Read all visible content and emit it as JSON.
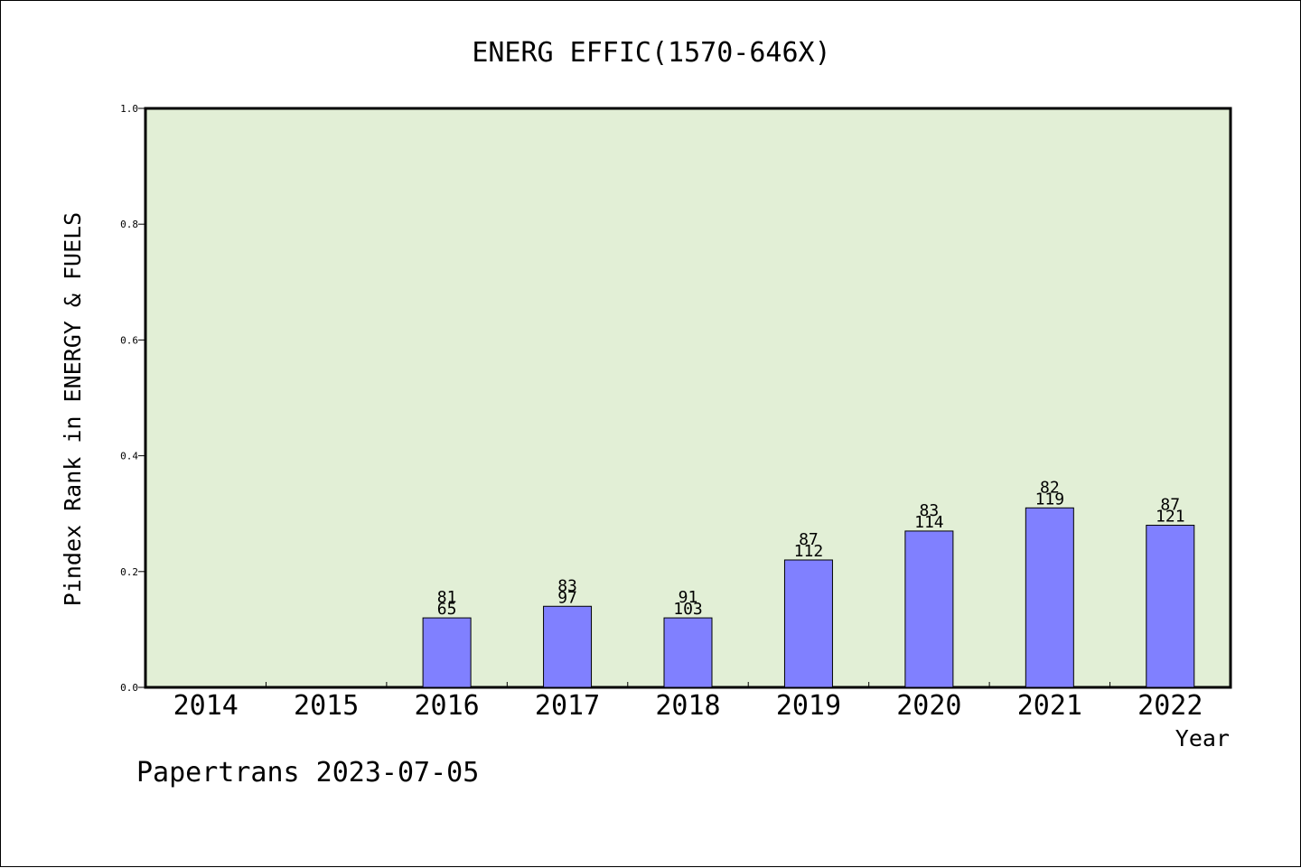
{
  "chart_data": {
    "type": "bar",
    "title": "ENERG EFFIC(1570-646X)",
    "xlabel": "Year",
    "ylabel": "Pindex Rank in ENERGY & FUELS",
    "ylim": [
      0,
      1.0
    ],
    "yticks": [
      "0.0",
      "0.2",
      "0.4",
      "0.6",
      "0.8",
      "1.0"
    ],
    "grid": false,
    "legend": "none",
    "categories": [
      "2014",
      "2015",
      "2016",
      "2017",
      "2018",
      "2019",
      "2020",
      "2021",
      "2022"
    ],
    "values": [
      null,
      null,
      0.12,
      0.14,
      0.12,
      0.22,
      0.27,
      0.31,
      0.28
    ],
    "bar_labels_top": [
      null,
      null,
      "81",
      "83",
      "91",
      "87",
      "83",
      "82",
      "87"
    ],
    "bar_labels_bottom": [
      null,
      null,
      "65",
      "97",
      "103",
      "112",
      "114",
      "119",
      "121"
    ]
  },
  "footer": "Papertrans 2023-07-05",
  "colors": {
    "plot_background": "#e2efd6",
    "bar_fill": "#8080ff",
    "bar_edge": "#000000",
    "axes": "#000000"
  }
}
